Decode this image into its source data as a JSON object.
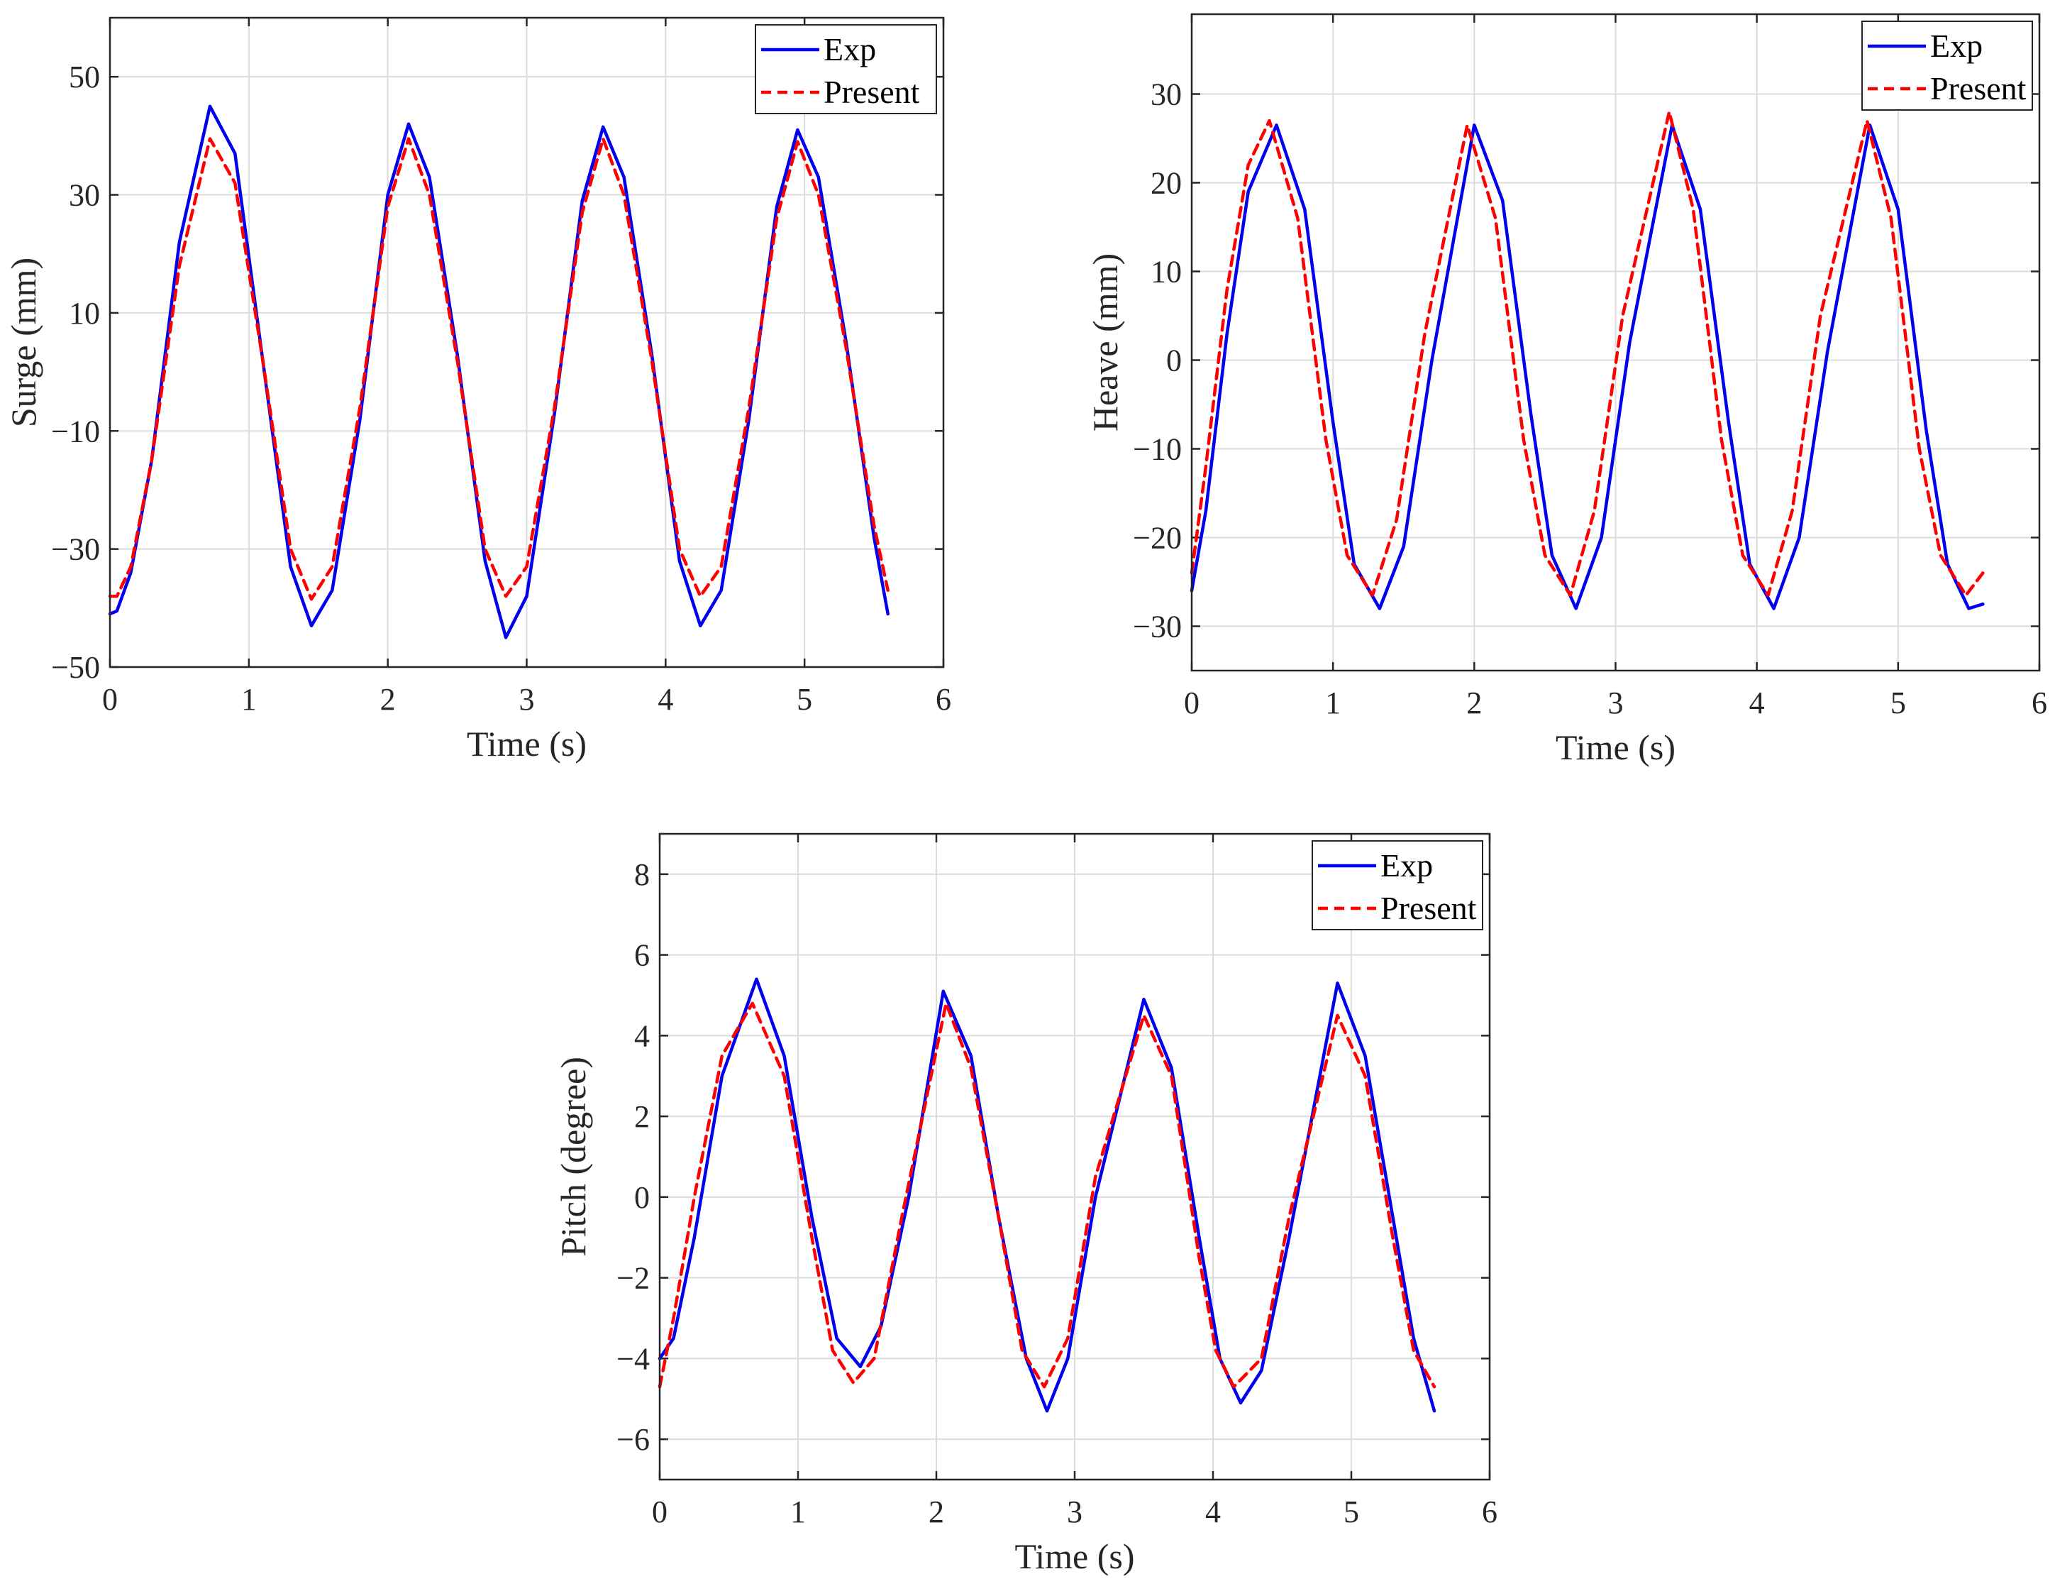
{
  "chart_data": [
    {
      "type": "line",
      "xlabel": "Time (s)",
      "ylabel": "Surge (mm)",
      "xlim": [
        0,
        6
      ],
      "ylim": [
        -50,
        60
      ],
      "xticks": [
        0,
        1,
        2,
        3,
        4,
        5,
        6
      ],
      "yticks": [
        -50,
        -30,
        -10,
        10,
        30,
        50
      ],
      "grid": true,
      "legend": "top-right",
      "series": [
        {
          "name": "Exp",
          "color": "#0000ee",
          "style": "solid",
          "x": [
            0,
            0.05,
            0.15,
            0.3,
            0.5,
            0.72,
            0.9,
            1.1,
            1.3,
            1.45,
            1.6,
            1.8,
            2.0,
            2.15,
            2.3,
            2.5,
            2.7,
            2.85,
            3.0,
            3.2,
            3.4,
            3.55,
            3.7,
            3.9,
            4.1,
            4.25,
            4.4,
            4.6,
            4.8,
            4.95,
            5.1,
            5.3,
            5.5,
            5.6
          ],
          "y": [
            -41,
            -40.5,
            -34,
            -15,
            22,
            45,
            37,
            2,
            -33,
            -43,
            -37,
            -8,
            30,
            42,
            33,
            3,
            -32,
            -45,
            -38,
            -7,
            29,
            41.5,
            33,
            3,
            -32,
            -43,
            -37,
            -8,
            28,
            41,
            33,
            5,
            -28,
            -41
          ]
        },
        {
          "name": "Present",
          "color": "#ff0000",
          "style": "dashed",
          "x": [
            0,
            0.05,
            0.15,
            0.3,
            0.5,
            0.72,
            0.9,
            1.1,
            1.3,
            1.45,
            1.6,
            1.8,
            2.0,
            2.15,
            2.3,
            2.5,
            2.7,
            2.85,
            3.0,
            3.2,
            3.4,
            3.55,
            3.7,
            3.9,
            4.1,
            4.25,
            4.4,
            4.6,
            4.8,
            4.95,
            5.1,
            5.3,
            5.5,
            5.6
          ],
          "y": [
            -38,
            -38,
            -33,
            -15,
            18,
            39.5,
            32,
            2,
            -30,
            -38.5,
            -33,
            -6,
            28,
            39.5,
            30,
            2,
            -30,
            -38,
            -33,
            -6,
            27,
            39.5,
            30,
            2,
            -30,
            -38,
            -33,
            -6,
            26,
            39,
            30,
            4,
            -26,
            -37
          ]
        }
      ]
    },
    {
      "type": "line",
      "xlabel": "Time (s)",
      "ylabel": "Heave (mm)",
      "xlim": [
        0,
        6
      ],
      "ylim": [
        -35,
        39
      ],
      "xticks": [
        0,
        1,
        2,
        3,
        4,
        5,
        6
      ],
      "yticks": [
        -30,
        -20,
        -10,
        0,
        10,
        20,
        30
      ],
      "grid": true,
      "legend": "top-right",
      "series": [
        {
          "name": "Exp",
          "color": "#0000ee",
          "style": "solid",
          "x": [
            0,
            0.1,
            0.25,
            0.4,
            0.6,
            0.8,
            1.0,
            1.15,
            1.33,
            1.5,
            1.7,
            2.0,
            2.2,
            2.4,
            2.55,
            2.72,
            2.9,
            3.1,
            3.4,
            3.6,
            3.8,
            3.95,
            4.12,
            4.3,
            4.5,
            4.8,
            5.0,
            5.2,
            5.35,
            5.5,
            5.6
          ],
          "y": [
            -26,
            -17,
            3,
            19,
            26.5,
            17,
            -7,
            -23,
            -28,
            -21,
            0,
            26.5,
            18,
            -6,
            -22,
            -28,
            -20,
            2,
            26.5,
            17,
            -7,
            -23,
            -28,
            -20,
            1,
            26.5,
            17,
            -8,
            -23,
            -28,
            -27.5
          ]
        },
        {
          "name": "Present",
          "color": "#ff0000",
          "style": "dashed",
          "x": [
            0,
            0.1,
            0.25,
            0.4,
            0.55,
            0.75,
            0.95,
            1.1,
            1.28,
            1.45,
            1.65,
            1.95,
            2.15,
            2.35,
            2.5,
            2.68,
            2.85,
            3.05,
            3.38,
            3.55,
            3.75,
            3.9,
            4.08,
            4.25,
            4.45,
            4.78,
            4.95,
            5.15,
            5.3,
            5.48,
            5.6
          ],
          "y": [
            -24,
            -12,
            8,
            22,
            27,
            16,
            -9,
            -22,
            -26.5,
            -18,
            3,
            26.5,
            16,
            -9,
            -22,
            -26.5,
            -17,
            5,
            28,
            17,
            -9,
            -22,
            -26.5,
            -17,
            5,
            27,
            16,
            -10,
            -22,
            -26.5,
            -24
          ]
        }
      ]
    },
    {
      "type": "line",
      "xlabel": "Time (s)",
      "ylabel": "Pitch (degree)",
      "xlim": [
        0,
        6
      ],
      "ylim": [
        -7,
        9
      ],
      "xticks": [
        0,
        1,
        2,
        3,
        4,
        5,
        6
      ],
      "yticks": [
        -6,
        -4,
        -2,
        0,
        2,
        4,
        6,
        8
      ],
      "grid": true,
      "legend": "top-right",
      "series": [
        {
          "name": "Exp",
          "color": "#0000ee",
          "style": "solid",
          "x": [
            0,
            0.1,
            0.25,
            0.45,
            0.7,
            0.9,
            1.1,
            1.28,
            1.45,
            1.6,
            1.8,
            2.05,
            2.25,
            2.45,
            2.65,
            2.8,
            2.95,
            3.15,
            3.5,
            3.7,
            3.9,
            4.05,
            4.2,
            4.35,
            4.55,
            4.9,
            5.1,
            5.3,
            5.45,
            5.6
          ],
          "y": [
            -4,
            -3.5,
            -1,
            3,
            5.4,
            3.5,
            -0.5,
            -3.5,
            -4.2,
            -3.2,
            0,
            5.1,
            3.5,
            -0.5,
            -4,
            -5.3,
            -4,
            0,
            4.9,
            3.2,
            -1,
            -4,
            -5.1,
            -4.3,
            -1,
            5.3,
            3.5,
            -0.5,
            -3.5,
            -5.3
          ]
        },
        {
          "name": "Present",
          "color": "#ff0000",
          "style": "dashed",
          "x": [
            0,
            0.1,
            0.25,
            0.45,
            0.67,
            0.9,
            1.1,
            1.25,
            1.4,
            1.55,
            1.75,
            2.07,
            2.25,
            2.45,
            2.62,
            2.78,
            2.95,
            3.15,
            3.5,
            3.7,
            3.9,
            4.02,
            4.15,
            4.35,
            4.55,
            4.9,
            5.1,
            5.3,
            5.45,
            5.6
          ],
          "y": [
            -4.7,
            -3,
            0,
            3.5,
            4.8,
            3,
            -1,
            -3.8,
            -4.6,
            -4,
            -0.5,
            4.8,
            3.2,
            -0.5,
            -3.8,
            -4.7,
            -3.5,
            0.5,
            4.5,
            3,
            -1.5,
            -3.8,
            -4.7,
            -4,
            -0.5,
            4.5,
            3,
            -1,
            -3.8,
            -4.7
          ]
        }
      ]
    }
  ]
}
